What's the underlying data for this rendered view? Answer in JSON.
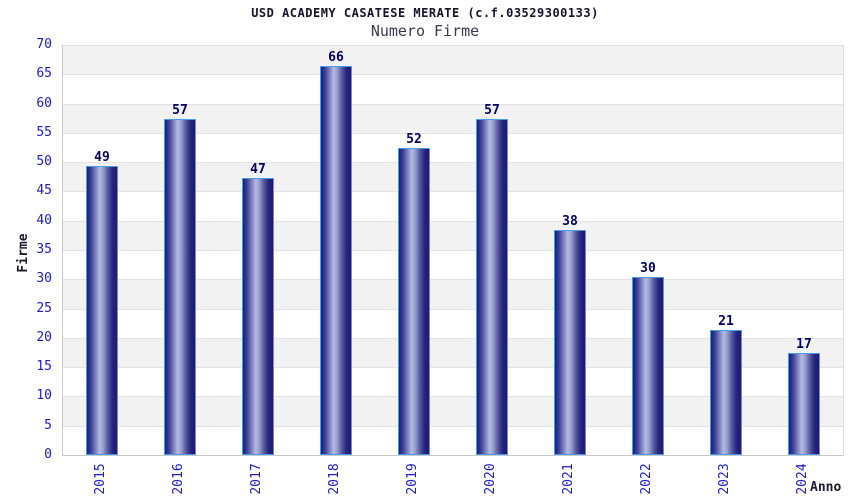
{
  "chart_data": {
    "type": "bar",
    "title": "USD ACADEMY CASATESE MERATE (c.f.03529300133)",
    "subtitle": "Numero Firme",
    "xlabel": "Anno",
    "ylabel": "Firme",
    "categories": [
      "2015",
      "2016",
      "2017",
      "2018",
      "2019",
      "2020",
      "2021",
      "2022",
      "2023",
      "2024"
    ],
    "values": [
      49,
      57,
      47,
      66,
      52,
      57,
      38,
      30,
      21,
      17
    ],
    "ylim": [
      0,
      70
    ],
    "ytick_step": 5,
    "yticks": [
      0,
      5,
      10,
      15,
      20,
      25,
      30,
      35,
      40,
      45,
      50,
      55,
      60,
      65,
      70
    ],
    "grid": true,
    "legend": false,
    "band_fill": "alternating gray/white horizontal bands every 5 units, gray at top"
  },
  "colors": {
    "title": "#14142b",
    "subtitle": "#3a3a4d",
    "tick": "#1c1ccd",
    "value": "#000066",
    "axis_title": "#1c1c2e",
    "band": "#f2f2f2",
    "grid": "#e3e3e3",
    "axis": "#c8c8c8",
    "bar_border": "#4a9bf0",
    "bar_dark": "#1a1a70",
    "bar_mid": "#b4badf"
  }
}
